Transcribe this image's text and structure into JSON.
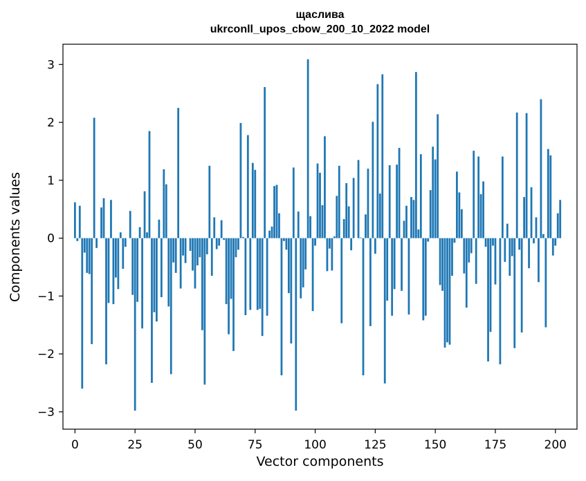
{
  "chart_data": {
    "type": "bar",
    "title": "щаслива",
    "subtitle": "ukrconll_upos_cbow_200_10_2022 model",
    "xlabel": "Vector components",
    "ylabel": "Components values",
    "xlim": [
      -5,
      209
    ],
    "ylim": [
      -3.3,
      3.35
    ],
    "xticks": [
      0,
      25,
      50,
      75,
      100,
      125,
      150,
      175,
      200
    ],
    "yticks": [
      -3,
      -2,
      -1,
      0,
      1,
      2,
      3
    ],
    "grid": false,
    "color": "#1f77b4",
    "x_start": 0,
    "values": [
      0.62,
      -0.05,
      0.56,
      -2.6,
      -0.25,
      -0.6,
      -0.62,
      -1.83,
      2.08,
      -0.17,
      0.0,
      0.53,
      0.69,
      -2.18,
      -1.12,
      0.66,
      -1.14,
      -0.68,
      -0.88,
      0.1,
      -0.53,
      -0.15,
      0.0,
      0.47,
      -0.98,
      -2.98,
      -1.1,
      0.19,
      -1.56,
      0.81,
      0.1,
      1.85,
      -2.5,
      -1.28,
      -1.44,
      0.32,
      -1.02,
      1.19,
      0.93,
      -1.18,
      -2.35,
      -0.42,
      -0.6,
      2.25,
      -0.87,
      -0.3,
      -0.43,
      0.0,
      -0.22,
      -0.56,
      -0.87,
      -0.47,
      -0.33,
      -1.59,
      -2.53,
      -0.28,
      1.25,
      -0.65,
      0.36,
      -0.19,
      -0.13,
      0.31,
      -0.03,
      -1.14,
      -1.66,
      -1.05,
      -1.95,
      -0.33,
      -0.2,
      1.99,
      0.02,
      -1.33,
      1.78,
      -1.24,
      1.3,
      1.18,
      -1.24,
      -1.22,
      -1.69,
      2.61,
      -1.34,
      0.13,
      0.2,
      0.9,
      0.92,
      0.43,
      -2.37,
      -0.05,
      -0.2,
      -0.95,
      -1.82,
      1.22,
      -2.98,
      0.46,
      -1.04,
      -0.85,
      -0.54,
      3.09,
      0.38,
      -1.26,
      -0.13,
      1.29,
      1.13,
      0.57,
      1.76,
      -0.57,
      -0.18,
      -0.56,
      0.03,
      0.73,
      1.25,
      -1.47,
      0.33,
      0.95,
      0.55,
      -0.21,
      1.04,
      0.0,
      1.35,
      0.01,
      -2.37,
      0.41,
      1.2,
      -1.52,
      2.01,
      -0.27,
      2.66,
      0.77,
      2.83,
      -2.51,
      -1.08,
      1.26,
      -1.34,
      -0.88,
      1.27,
      1.56,
      -0.91,
      0.3,
      0.56,
      -1.32,
      0.71,
      0.66,
      2.87,
      0.15,
      1.45,
      -1.42,
      -1.34,
      -0.06,
      0.83,
      1.58,
      1.36,
      2.14,
      -0.81,
      -0.91,
      -1.89,
      -1.8,
      -1.84,
      -0.65,
      -0.08,
      1.15,
      0.79,
      0.5,
      -0.61,
      -1.2,
      -0.42,
      -0.26,
      1.51,
      -0.79,
      1.41,
      0.76,
      0.98,
      -0.15,
      -2.13,
      -1.62,
      -0.13,
      -0.8,
      0.0,
      -2.18,
      1.41,
      -0.41,
      0.25,
      -0.65,
      -0.31,
      -1.9,
      2.17,
      -0.2,
      -1.63,
      0.71,
      2.16,
      -0.52,
      0.88,
      -0.09,
      0.36,
      -0.76,
      2.4,
      0.07,
      -1.54,
      1.54,
      1.43,
      -0.3,
      -0.13,
      0.43,
      0.66
    ]
  }
}
